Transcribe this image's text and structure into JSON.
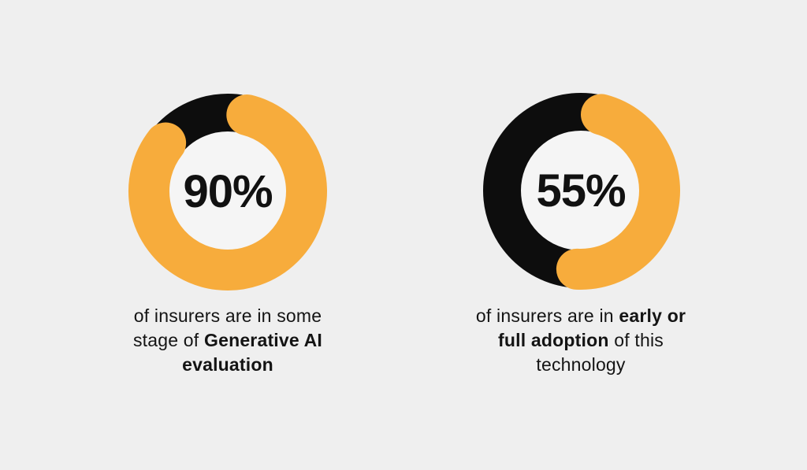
{
  "page": {
    "background": "#EFEFEF",
    "text_color": "#141414"
  },
  "chart_data": [
    {
      "type": "donut",
      "value": 90,
      "center_label": "90%",
      "caption_lines": [
        [
          {
            "text": "of insurers are in some",
            "bold": false
          }
        ],
        [
          {
            "text": "stage of ",
            "bold": false
          },
          {
            "text": "Generative AI",
            "bold": true
          }
        ],
        [
          {
            "text": "evaluation",
            "bold": true
          }
        ]
      ],
      "colors": {
        "progress": "#F7AC3C",
        "track": "#0D0D0D",
        "hole": "#F5F5F5"
      },
      "layout": {
        "gap_center_deg": -19,
        "outer_radius": 124,
        "ring_thickness": 48,
        "progress_thickness": 52,
        "legend": "none",
        "grid": false
      }
    },
    {
      "type": "donut",
      "value": 55,
      "center_label": "55%",
      "caption_lines": [
        [
          {
            "text": "of insurers are in ",
            "bold": false
          },
          {
            "text": "early or",
            "bold": true
          }
        ],
        [
          {
            "text": "full adoption",
            "bold": true
          },
          {
            "text": " of this",
            "bold": false
          }
        ],
        [
          {
            "text": "technology",
            "bold": false
          }
        ]
      ],
      "colors": {
        "progress": "#F7AC3C",
        "track": "#0D0D0D",
        "hole": "#F5F5F5"
      },
      "layout": {
        "gap_center_deg": -81,
        "outer_radius": 124,
        "ring_thickness": 48,
        "progress_thickness": 52,
        "legend": "none",
        "grid": false
      }
    }
  ]
}
